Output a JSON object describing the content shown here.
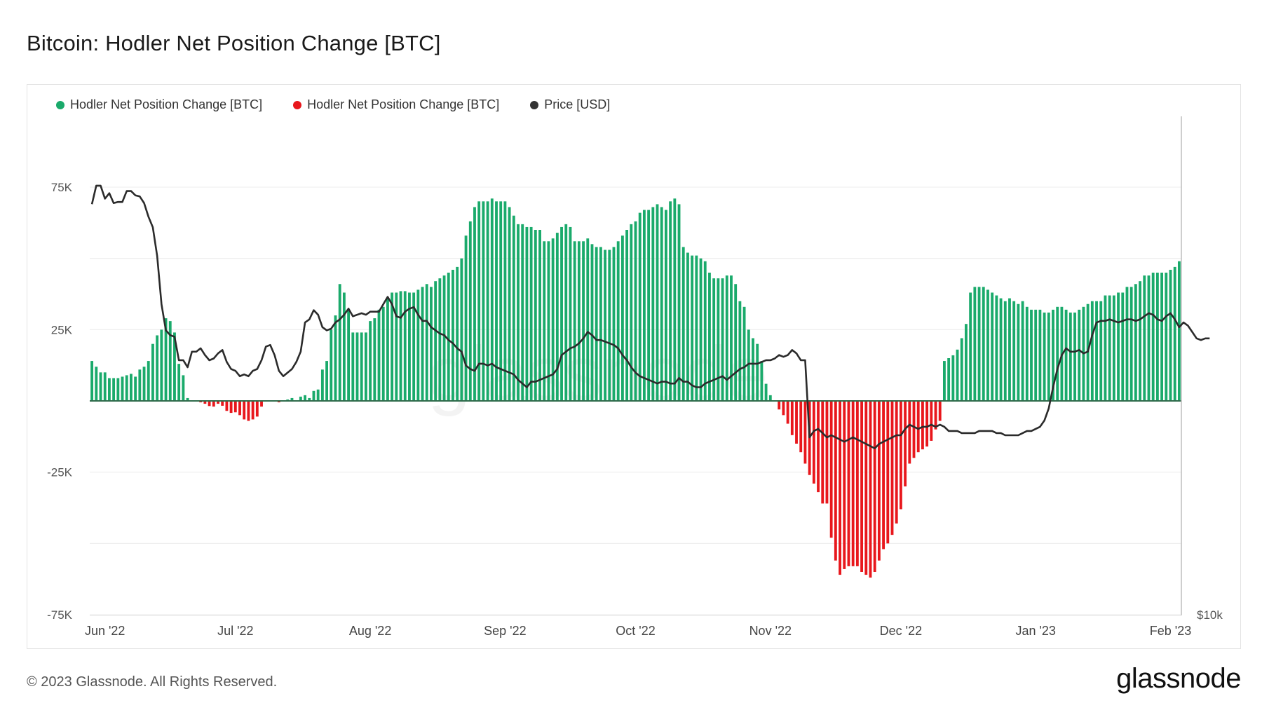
{
  "title": "Bitcoin: Hodler Net Position Change [BTC]",
  "legend": [
    {
      "label": "Hodler Net Position Change [BTC]",
      "color": "#1aaa6b"
    },
    {
      "label": "Hodler Net Position Change [BTC]",
      "color": "#e8171c"
    },
    {
      "label": "Price [USD]",
      "color": "#333333"
    }
  ],
  "footer": {
    "copyright": "© 2023 Glassnode. All Rights Reserved.",
    "logo": "glassnode",
    "watermark": "glassnode"
  },
  "chart_data": {
    "type": "bar",
    "title": "Bitcoin: Hodler Net Position Change [BTC]",
    "ylim": [
      -75000,
      75000
    ],
    "y_ticks": [
      "75K",
      "25K",
      "-25K",
      "-75K"
    ],
    "y_tick_values": [
      75000,
      25000,
      -25000,
      -75000
    ],
    "right_axis_label": "$10k",
    "x_ticks": [
      "Jun '22",
      "Jul '22",
      "Aug '22",
      "Sep '22",
      "Oct '22",
      "Nov '22",
      "Dec '22",
      "Jan '23",
      "Feb '23"
    ],
    "x_tick_index": [
      3,
      33,
      64,
      95,
      125,
      156,
      186,
      217,
      248
    ],
    "grid": "horizontal",
    "legend_position": "top-left",
    "colors": {
      "positive": "#1aaa6b",
      "negative": "#e8171c",
      "price": "#2b2b2b"
    },
    "series": [
      {
        "name": "Hodler Net Position Change [BTC]",
        "kind": "bar",
        "values": [
          14000,
          12000,
          10000,
          10000,
          8000,
          8000,
          8000,
          8500,
          9000,
          9500,
          8500,
          11000,
          12000,
          14000,
          20000,
          23000,
          25000,
          29000,
          28000,
          24000,
          13000,
          9000,
          1000,
          0,
          0,
          -500,
          -1000,
          -1800,
          -2000,
          -1000,
          -1700,
          -3500,
          -4200,
          -4000,
          -5000,
          -6500,
          -7000,
          -6500,
          -5500,
          -2000,
          0,
          0,
          0,
          -500,
          0,
          500,
          1000,
          0,
          1500,
          2000,
          1000,
          3500,
          4000,
          11000,
          14000,
          25000,
          30000,
          41000,
          38000,
          32000,
          24000,
          24000,
          24000,
          24000,
          28000,
          29000,
          32000,
          33000,
          36000,
          38000,
          38000,
          38500,
          38500,
          38000,
          38000,
          39000,
          40000,
          41000,
          40000,
          42000,
          43000,
          44000,
          45000,
          46000,
          47000,
          50000,
          58000,
          63000,
          68000,
          70000,
          70000,
          70000,
          71000,
          70000,
          70000,
          70000,
          68000,
          65000,
          62000,
          62000,
          61000,
          61000,
          60000,
          60000,
          56000,
          56000,
          57000,
          59000,
          61000,
          62000,
          61000,
          56000,
          56000,
          56000,
          57000,
          55000,
          54000,
          54000,
          53000,
          53000,
          54000,
          56000,
          58000,
          60000,
          62000,
          63000,
          66000,
          67000,
          67000,
          68000,
          69000,
          68000,
          67000,
          70000,
          71000,
          69000,
          54000,
          52000,
          51000,
          51000,
          50000,
          49000,
          45000,
          43000,
          43000,
          43000,
          44000,
          44000,
          41000,
          35000,
          33000,
          25000,
          22000,
          20000,
          14000,
          6000,
          2000,
          0,
          -3000,
          -5000,
          -8000,
          -12000,
          -15000,
          -18000,
          -22000,
          -26000,
          -29000,
          -32000,
          -36000,
          -36000,
          -48000,
          -56000,
          -61000,
          -59000,
          -58000,
          -58000,
          -58000,
          -60000,
          -61000,
          -62000,
          -60000,
          -56000,
          -52000,
          -50000,
          -47000,
          -43000,
          -38000,
          -30000,
          -22000,
          -20000,
          -18000,
          -17000,
          -16000,
          -14000,
          -10000,
          -7000,
          14000,
          15000,
          16000,
          18000,
          22000,
          27000,
          38000,
          40000,
          40000,
          40000,
          39000,
          38000,
          37000,
          36000,
          35000,
          36000,
          35000,
          34000,
          35000,
          33000,
          32000,
          32000,
          32000,
          31000,
          31000,
          32000,
          33000,
          33000,
          32000,
          31000,
          31000,
          32000,
          33000,
          34000,
          35000,
          35000,
          35000,
          37000,
          37000,
          37000,
          38000,
          38000,
          40000,
          40000,
          41000,
          42000,
          44000,
          44000,
          45000,
          45000,
          45000,
          45000,
          46000,
          47000,
          49000
        ]
      },
      {
        "name": "Price [USD]",
        "kind": "line",
        "values": [
          31800,
          33500,
          33500,
          32300,
          32800,
          31900,
          32000,
          32000,
          33000,
          33000,
          32600,
          32500,
          31900,
          30700,
          29800,
          27500,
          24000,
          22300,
          22000,
          21900,
          20500,
          20500,
          20100,
          21000,
          21000,
          21200,
          20800,
          20500,
          20600,
          20900,
          21100,
          20400,
          20000,
          19900,
          19600,
          19700,
          19600,
          19900,
          20000,
          20500,
          21300,
          21400,
          20800,
          19900,
          19600,
          19800,
          20000,
          20400,
          21000,
          22800,
          23000,
          23600,
          23300,
          22500,
          22300,
          22400,
          22800,
          23000,
          23300,
          23700,
          23200,
          23300,
          23400,
          23300,
          23500,
          23500,
          23500,
          24000,
          24500,
          24000,
          23200,
          23100,
          23500,
          23700,
          23800,
          23300,
          22900,
          22900,
          22500,
          22300,
          22100,
          22000,
          21700,
          21500,
          21200,
          21000,
          20200,
          20000,
          19900,
          20300,
          20300,
          20200,
          20300,
          20100,
          20000,
          19900,
          19800,
          19700,
          19400,
          19200,
          19000,
          19300,
          19300,
          19400,
          19500,
          19600,
          19700,
          20000,
          20800,
          21000,
          21200,
          21300,
          21500,
          21800,
          22200,
          22000,
          21700,
          21700,
          21600,
          21500,
          21400,
          21200,
          20800,
          20500,
          20100,
          19800,
          19600,
          19500,
          19400,
          19300,
          19200,
          19300,
          19300,
          19200,
          19200,
          19500,
          19300,
          19300,
          19100,
          19000,
          19000,
          19200,
          19300,
          19400,
          19500,
          19600,
          19400,
          19600,
          19800,
          20000,
          20100,
          20300,
          20300,
          20300,
          20400,
          20500,
          20500,
          20600,
          20800,
          20700,
          20800,
          21100,
          20900,
          20500,
          20500,
          16500,
          16800,
          16900,
          16700,
          16500,
          16600,
          16500,
          16400,
          16300,
          16400,
          16500,
          16400,
          16300,
          16200,
          16100,
          16000,
          16200,
          16300,
          16400,
          16500,
          16600,
          16600,
          16900,
          17100,
          17000,
          16900,
          17000,
          17000,
          17100,
          17000,
          17100,
          17000,
          16800,
          16800,
          16800,
          16700,
          16700,
          16700,
          16700,
          16800,
          16800,
          16800,
          16800,
          16700,
          16700,
          16600,
          16600,
          16600,
          16600,
          16700,
          16800,
          16800,
          16900,
          17000,
          17300,
          17900,
          19000,
          20000,
          20800,
          21200,
          21000,
          21000,
          21100,
          20900,
          21000,
          22000,
          22800,
          22900,
          22900,
          23000,
          22900,
          22800,
          22900,
          23000,
          23000,
          22900,
          23000,
          23200,
          23400,
          23300,
          23000,
          22900,
          23200,
          23400,
          23000,
          22500,
          22800,
          22600,
          22200,
          21800,
          21700,
          21800,
          21800
        ]
      }
    ]
  }
}
